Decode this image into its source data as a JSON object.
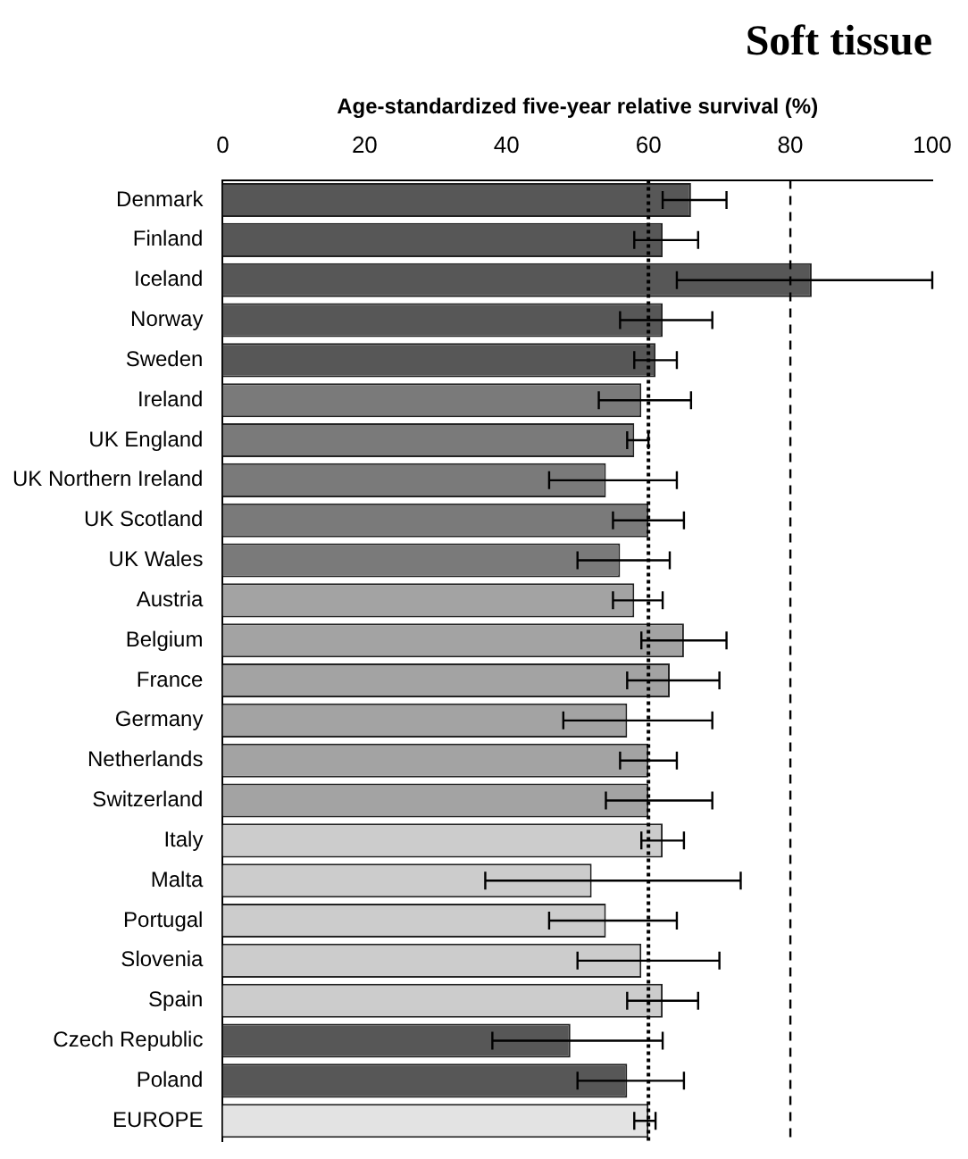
{
  "chart_data": {
    "type": "bar",
    "orientation": "horizontal",
    "title": "Soft tissue",
    "xlabel": "Age-standardized five-year relative survival (%)",
    "categories": [
      "Denmark",
      "Finland",
      "Iceland",
      "Norway",
      "Sweden",
      "Ireland",
      "UK England",
      "UK Northern Ireland",
      "UK Scotland",
      "UK Wales",
      "Austria",
      "Belgium",
      "France",
      "Germany",
      "Netherlands",
      "Switzerland",
      "Italy",
      "Malta",
      "Portugal",
      "Slovenia",
      "Spain",
      "Czech Republic",
      "Poland",
      "EUROPE"
    ],
    "values": [
      66,
      62,
      83,
      62,
      61,
      59,
      58,
      54,
      60,
      56,
      58,
      65,
      63,
      57,
      60,
      60,
      62,
      52,
      54,
      59,
      62,
      49,
      57,
      60
    ],
    "errors": [
      [
        62,
        71
      ],
      [
        58,
        67
      ],
      [
        64,
        100
      ],
      [
        56,
        69
      ],
      [
        58,
        64
      ],
      [
        53,
        66
      ],
      [
        57,
        60
      ],
      [
        46,
        64
      ],
      [
        55,
        65
      ],
      [
        50,
        63
      ],
      [
        55,
        62
      ],
      [
        59,
        71
      ],
      [
        57,
        70
      ],
      [
        48,
        69
      ],
      [
        56,
        64
      ],
      [
        54,
        69
      ],
      [
        59,
        65
      ],
      [
        37,
        73
      ],
      [
        46,
        64
      ],
      [
        50,
        70
      ],
      [
        57,
        67
      ],
      [
        38,
        62
      ],
      [
        50,
        65
      ],
      [
        58,
        61
      ]
    ],
    "colors": [
      "#575757",
      "#575757",
      "#575757",
      "#575757",
      "#575757",
      "#7a7a7a",
      "#7a7a7a",
      "#7a7a7a",
      "#7a7a7a",
      "#7a7a7a",
      "#a3a3a3",
      "#a3a3a3",
      "#a3a3a3",
      "#a3a3a3",
      "#a3a3a3",
      "#a3a3a3",
      "#cccccc",
      "#cccccc",
      "#cccccc",
      "#cccccc",
      "#cccccc",
      "#575757",
      "#575757",
      "#e3e3e3"
    ],
    "xlim": [
      0,
      100
    ],
    "xticks": [
      0,
      20,
      40,
      60,
      80,
      100
    ],
    "ref_lines": [
      {
        "axis": "x",
        "value": 60,
        "line_style": "dotted",
        "color": "#000000"
      },
      {
        "axis": "x",
        "value": 80,
        "line_style": "dashed",
        "color": "#000000"
      }
    ],
    "grid": false,
    "legend": false
  }
}
